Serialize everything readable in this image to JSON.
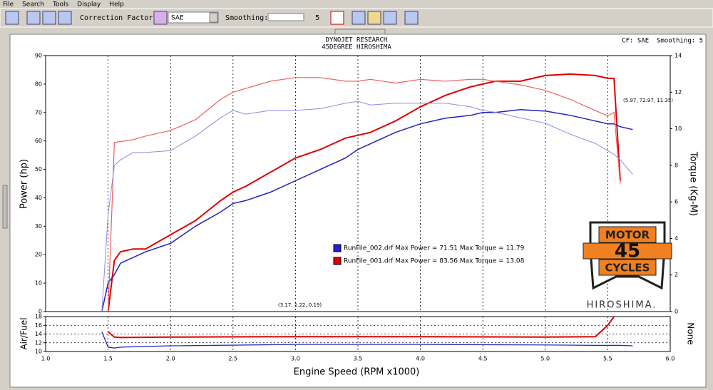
{
  "menu": [
    "File",
    "Search",
    "Tools",
    "Display",
    "Help"
  ],
  "toolbar": {
    "correction_label": "Correction Factor:",
    "correction_value": "SAE",
    "smoothing_label": "Smoothing:",
    "smoothing_value": "5"
  },
  "header_right": "CF: SAE  Smoothing: 5",
  "logo": {
    "top": "MOTOR",
    "number": "45",
    "bottom": "CYCLES",
    "caption": "HIROSHIMA."
  },
  "chart_data": [
    {
      "type": "line",
      "title": "DYNOJET RESEARCH",
      "subtitle": "45DEGREE HIROSHIMA",
      "ylabel": "Power (hp)",
      "y2label": "Torque (Kg-M)",
      "x": [
        1.45,
        1.5,
        1.55,
        1.6,
        1.7,
        1.8,
        2.0,
        2.2,
        2.4,
        2.5,
        2.6,
        2.8,
        3.0,
        3.2,
        3.4,
        3.5,
        3.6,
        3.8,
        4.0,
        4.2,
        4.4,
        4.5,
        4.6,
        4.8,
        5.0,
        5.2,
        5.4,
        5.5,
        5.55,
        5.6,
        5.7
      ],
      "xlim": [
        1,
        6
      ],
      "xticks": [
        1.5,
        {
          "value": 2,
          "label": "2.0"
        },
        2.5,
        {
          "value": 3,
          "label": "3.0"
        },
        3.5,
        {
          "value": 4,
          "label": "4.0"
        },
        4.5,
        {
          "value": 5,
          "label": "5.0"
        },
        5.5
      ],
      "ylim": [
        0,
        90
      ],
      "yticks": [
        0,
        10,
        20,
        30,
        40,
        50,
        60,
        70,
        80,
        90
      ],
      "y2lim": [
        0,
        14
      ],
      "y2ticks": [
        0,
        2,
        4,
        6,
        8,
        10,
        12,
        14
      ],
      "grid": true,
      "series": [
        {
          "color": "#e00000",
          "line_width": 2,
          "values": [
            null,
            0,
            18,
            21,
            22,
            22,
            27,
            32,
            39,
            42,
            44,
            49,
            54,
            57,
            61,
            62,
            63,
            67,
            72,
            76,
            79,
            80,
            81,
            81,
            83,
            83.5,
            83,
            82,
            82,
            46,
            null
          ]
        },
        {
          "color": "#2020c0",
          "line_width": 1.5,
          "values": [
            0,
            10,
            13,
            17,
            19,
            21,
            24,
            30,
            35,
            38,
            39,
            42,
            46,
            50,
            54,
            57,
            59,
            63,
            66,
            68,
            69,
            70,
            70,
            71,
            70.5,
            69,
            67,
            66,
            66,
            65,
            64
          ]
        },
        {
          "color": "#f06060",
          "line_width": 1.2,
          "axis": "y2",
          "values": [
            null,
            0,
            9.25,
            9.3,
            9.4,
            9.6,
            9.9,
            10.5,
            11.6,
            12.0,
            12.2,
            12.6,
            12.8,
            12.8,
            12.6,
            12.6,
            12.7,
            12.5,
            12.7,
            12.6,
            12.7,
            12.7,
            12.6,
            12.4,
            12.1,
            11.6,
            11.0,
            10.7,
            10.9,
            7,
            null
          ]
        },
        {
          "color": "#8c8ce6",
          "line_width": 1,
          "axis": "y2",
          "values": [
            0,
            5.3,
            8,
            8.3,
            8.7,
            8.7,
            8.8,
            9.6,
            10.6,
            11.0,
            10.8,
            11.0,
            11.0,
            11.1,
            11.4,
            11.5,
            11.3,
            11.4,
            11.4,
            11.4,
            11.2,
            11.0,
            10.9,
            10.6,
            10.3,
            9.7,
            9.2,
            8.8,
            8.6,
            8.3,
            7.5
          ]
        }
      ],
      "legend": [
        {
          "label": "RunFile_002.drf Max Power = 71.51 Max Torque = 11.79",
          "color": "#2020e0"
        },
        {
          "label": "RunFile_001.drf Max Power = 83.56 Max Torque = 13.08",
          "color": "#e00000"
        }
      ],
      "annotations": [
        "(5.97, 72.97, 11.35)",
        "(3.17, 1.22, 0.19)"
      ]
    },
    {
      "type": "line",
      "xlabel": "Engine Speed (RPM x1000)",
      "ylabel": "Air/Fuel",
      "y2label": "None",
      "x": [
        1.45,
        1.5,
        1.55,
        1.6,
        2.0,
        3.0,
        4.0,
        5.0,
        5.4,
        5.5,
        5.55,
        5.6,
        5.7
      ],
      "xlim": [
        1,
        6
      ],
      "xticks": [
        {
          "value": 1,
          "label": "1.0"
        },
        1.5,
        {
          "value": 2,
          "label": "2.0"
        },
        2.5,
        {
          "value": 3,
          "label": "3.0"
        },
        3.5,
        {
          "value": 4,
          "label": "4.0"
        },
        4.5,
        {
          "value": 5,
          "label": "5.0"
        },
        5.5,
        {
          "value": 6,
          "label": "6.0"
        }
      ],
      "ylim": [
        10,
        18
      ],
      "yticks": [
        10,
        12,
        14,
        16,
        18
      ],
      "grid": true,
      "series": [
        {
          "color": "#e00000",
          "line_width": 2,
          "values": [
            null,
            14.5,
            13.3,
            13.2,
            13.3,
            13.4,
            13.4,
            13.3,
            13.4,
            16,
            18,
            null,
            null
          ]
        },
        {
          "color": "#2020c0",
          "line_width": 1.2,
          "values": [
            14.5,
            11,
            10.8,
            11,
            11.3,
            11.6,
            11.6,
            11.5,
            11.4,
            11.4,
            11.4,
            11.4,
            11.3
          ]
        }
      ]
    }
  ]
}
